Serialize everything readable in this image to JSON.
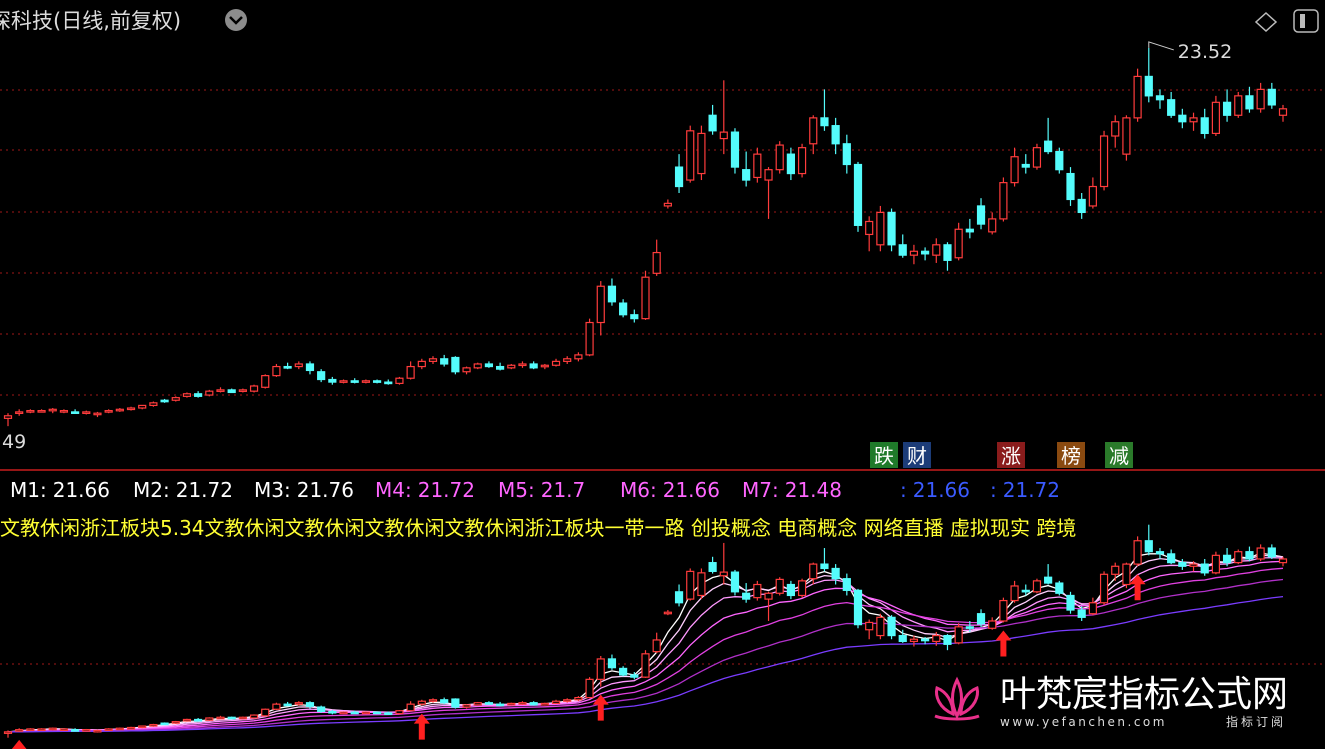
{
  "header": {
    "title": "深科技(日线,前复权)"
  },
  "main_panel": {
    "ylim": [
      20.3,
      23.89
    ],
    "max_marker": 23.52,
    "min_marker_label": "49",
    "up_color": "#ff3c3c",
    "down_color": "#54fcfc",
    "candles": [
      [
        20.66,
        20.7,
        20.6,
        20.68
      ],
      [
        20.7,
        20.73,
        20.68,
        20.71
      ],
      [
        20.71,
        20.73,
        20.7,
        20.72
      ],
      [
        20.72,
        20.73,
        20.71,
        20.72
      ],
      [
        20.72,
        20.74,
        20.7,
        20.73
      ],
      [
        20.72,
        20.73,
        20.7,
        20.72
      ],
      [
        20.71,
        20.73,
        20.7,
        20.7
      ],
      [
        20.7,
        20.72,
        20.69,
        20.71
      ],
      [
        20.69,
        20.71,
        20.67,
        20.7
      ],
      [
        20.71,
        20.73,
        20.7,
        20.72
      ],
      [
        20.72,
        20.74,
        20.71,
        20.73
      ],
      [
        20.73,
        20.75,
        20.72,
        20.74
      ],
      [
        20.74,
        20.76,
        20.73,
        20.76
      ],
      [
        20.76,
        20.79,
        20.75,
        20.78
      ],
      [
        20.8,
        20.81,
        20.78,
        20.79
      ],
      [
        20.8,
        20.83,
        20.79,
        20.82
      ],
      [
        20.83,
        20.86,
        20.82,
        20.85
      ],
      [
        20.85,
        20.87,
        20.82,
        20.83
      ],
      [
        20.84,
        20.88,
        20.83,
        20.87
      ],
      [
        20.87,
        20.9,
        20.86,
        20.88
      ],
      [
        20.88,
        20.89,
        20.86,
        20.86
      ],
      [
        20.87,
        20.89,
        20.86,
        20.88
      ],
      [
        20.87,
        20.92,
        20.86,
        20.91
      ],
      [
        20.9,
        21.0,
        20.89,
        20.99
      ],
      [
        20.99,
        21.08,
        20.98,
        21.06
      ],
      [
        21.06,
        21.09,
        21.04,
        21.05
      ],
      [
        21.06,
        21.1,
        21.04,
        21.08
      ],
      [
        21.08,
        21.1,
        21.0,
        21.03
      ],
      [
        21.02,
        21.04,
        20.94,
        20.96
      ],
      [
        20.96,
        20.98,
        20.92,
        20.94
      ],
      [
        20.94,
        20.96,
        20.93,
        20.95
      ],
      [
        20.95,
        20.97,
        20.93,
        20.94
      ],
      [
        20.94,
        20.96,
        20.93,
        20.95
      ],
      [
        20.95,
        20.96,
        20.93,
        20.94
      ],
      [
        20.94,
        20.96,
        20.92,
        20.93
      ],
      [
        20.93,
        20.98,
        20.92,
        20.97
      ],
      [
        20.97,
        21.1,
        20.96,
        21.06
      ],
      [
        21.06,
        21.12,
        21.04,
        21.1
      ],
      [
        21.1,
        21.14,
        21.08,
        21.12
      ],
      [
        21.12,
        21.15,
        21.06,
        21.08
      ],
      [
        21.13,
        21.14,
        21.0,
        21.02
      ],
      [
        21.02,
        21.06,
        21.0,
        21.05
      ],
      [
        21.05,
        21.09,
        21.04,
        21.08
      ],
      [
        21.08,
        21.1,
        21.05,
        21.06
      ],
      [
        21.06,
        21.09,
        21.03,
        21.04
      ],
      [
        21.05,
        21.08,
        21.04,
        21.07
      ],
      [
        21.07,
        21.1,
        21.05,
        21.08
      ],
      [
        21.08,
        21.1,
        21.04,
        21.05
      ],
      [
        21.06,
        21.08,
        21.04,
        21.07
      ],
      [
        21.07,
        21.12,
        21.06,
        21.1
      ],
      [
        21.1,
        21.14,
        21.08,
        21.12
      ],
      [
        21.12,
        21.17,
        21.1,
        21.15
      ],
      [
        21.15,
        21.43,
        21.14,
        21.4
      ],
      [
        21.4,
        21.72,
        21.3,
        21.68
      ],
      [
        21.68,
        21.74,
        21.53,
        21.56
      ],
      [
        21.55,
        21.58,
        21.44,
        21.46
      ],
      [
        21.46,
        21.5,
        21.4,
        21.43
      ],
      [
        21.43,
        21.8,
        21.42,
        21.75
      ],
      [
        21.78,
        22.04,
        21.76,
        21.94
      ],
      [
        22.3,
        22.35,
        22.28,
        22.32
      ],
      [
        22.6,
        22.7,
        22.4,
        22.45
      ],
      [
        22.5,
        22.92,
        22.48,
        22.88
      ],
      [
        22.55,
        22.92,
        22.5,
        22.86
      ],
      [
        23.0,
        23.08,
        22.85,
        22.88
      ],
      [
        22.82,
        23.27,
        22.7,
        22.87
      ],
      [
        22.87,
        22.9,
        22.55,
        22.6
      ],
      [
        22.58,
        22.72,
        22.45,
        22.5
      ],
      [
        22.52,
        22.75,
        22.48,
        22.7
      ],
      [
        22.5,
        22.6,
        22.2,
        22.58
      ],
      [
        22.58,
        22.8,
        22.55,
        22.77
      ],
      [
        22.7,
        22.75,
        22.5,
        22.55
      ],
      [
        22.55,
        22.78,
        22.52,
        22.75
      ],
      [
        22.78,
        23.0,
        22.7,
        22.98
      ],
      [
        22.98,
        23.2,
        22.88,
        22.92
      ],
      [
        22.92,
        22.98,
        22.7,
        22.78
      ],
      [
        22.78,
        22.85,
        22.55,
        22.62
      ],
      [
        22.62,
        22.64,
        22.1,
        22.15
      ],
      [
        22.08,
        22.22,
        21.95,
        22.18
      ],
      [
        22.0,
        22.3,
        21.95,
        22.25
      ],
      [
        22.25,
        22.28,
        21.95,
        22.0
      ],
      [
        22.0,
        22.08,
        21.9,
        21.92
      ],
      [
        21.92,
        22.0,
        21.85,
        21.95
      ],
      [
        21.95,
        21.98,
        21.88,
        21.93
      ],
      [
        21.92,
        22.05,
        21.86,
        22.0
      ],
      [
        22.0,
        22.02,
        21.8,
        21.88
      ],
      [
        21.9,
        22.17,
        21.88,
        22.12
      ],
      [
        22.12,
        22.2,
        22.05,
        22.1
      ],
      [
        22.3,
        22.36,
        22.12,
        22.16
      ],
      [
        22.1,
        22.25,
        22.08,
        22.2
      ],
      [
        22.2,
        22.52,
        22.18,
        22.48
      ],
      [
        22.48,
        22.75,
        22.45,
        22.68
      ],
      [
        22.62,
        22.7,
        22.55,
        22.6
      ],
      [
        22.6,
        22.78,
        22.58,
        22.75
      ],
      [
        22.8,
        22.98,
        22.7,
        22.72
      ],
      [
        22.72,
        22.75,
        22.55,
        22.58
      ],
      [
        22.55,
        22.6,
        22.3,
        22.35
      ],
      [
        22.35,
        22.4,
        22.2,
        22.25
      ],
      [
        22.3,
        22.52,
        22.28,
        22.45
      ],
      [
        22.45,
        22.88,
        22.42,
        22.84
      ],
      [
        22.84,
        23.0,
        22.75,
        22.95
      ],
      [
        22.7,
        23.0,
        22.65,
        22.98
      ],
      [
        22.98,
        23.36,
        22.95,
        23.3
      ],
      [
        23.3,
        23.52,
        23.1,
        23.15
      ],
      [
        23.15,
        23.2,
        23.05,
        23.12
      ],
      [
        23.12,
        23.18,
        22.98,
        23.0
      ],
      [
        23.0,
        23.05,
        22.9,
        22.95
      ],
      [
        22.95,
        23.02,
        22.88,
        22.98
      ],
      [
        22.98,
        23.05,
        22.82,
        22.86
      ],
      [
        22.86,
        23.15,
        22.84,
        23.1
      ],
      [
        23.1,
        23.2,
        22.95,
        23.0
      ],
      [
        23.0,
        23.18,
        22.98,
        23.15
      ],
      [
        23.15,
        23.22,
        23.02,
        23.05
      ],
      [
        23.05,
        23.25,
        23.02,
        23.2
      ],
      [
        23.2,
        23.25,
        23.05,
        23.08
      ],
      [
        23.0,
        23.08,
        22.95,
        23.05
      ]
    ],
    "buttons": [
      {
        "label": "跌",
        "color": "#1f7a2a"
      },
      {
        "label": "财",
        "color": "#1c3c78"
      },
      {
        "label": "涨",
        "color": "#8a1c1c"
      },
      {
        "label": "榜",
        "color": "#8a4a10"
      },
      {
        "label": "减",
        "color": "#2a7a2a"
      }
    ]
  },
  "indicator_panel": {
    "ylim": [
      20.5,
      23.79
    ],
    "values": [
      {
        "label": "M1:",
        "value": 21.66,
        "color": "#ffffff"
      },
      {
        "label": "M2:",
        "value": 21.72,
        "color": "#ffffff"
      },
      {
        "label": "M3:",
        "value": 21.76,
        "color": "#ffffff"
      },
      {
        "label": "M4:",
        "value": 21.72,
        "color": "#ff66ff"
      },
      {
        "label": "M5:",
        "value": 21.7,
        "color": "#ff66ff"
      },
      {
        "label": "M6:",
        "value": 21.66,
        "color": "#ff66ff"
      },
      {
        "label": "M7:",
        "value": 21.48,
        "color": "#ff66ff"
      },
      {
        "label": ":",
        "value": 21.66,
        "color": "#3b5bff"
      },
      {
        "label": ":",
        "value": 21.72,
        "color": "#3b5bff"
      }
    ],
    "concepts": "文教休闲浙江板块5.34文教休闲文教休闲文教休闲文教休闲浙江板块一带一路 创投概念 电商概念 网络直播 虚拟现实 跨境",
    "signals": [
      1,
      37,
      53,
      89,
      101
    ]
  },
  "watermark": {
    "name": "叶梵宸指标公式网",
    "url": "www.yefanchen.com",
    "tag": "指标订阅"
  }
}
